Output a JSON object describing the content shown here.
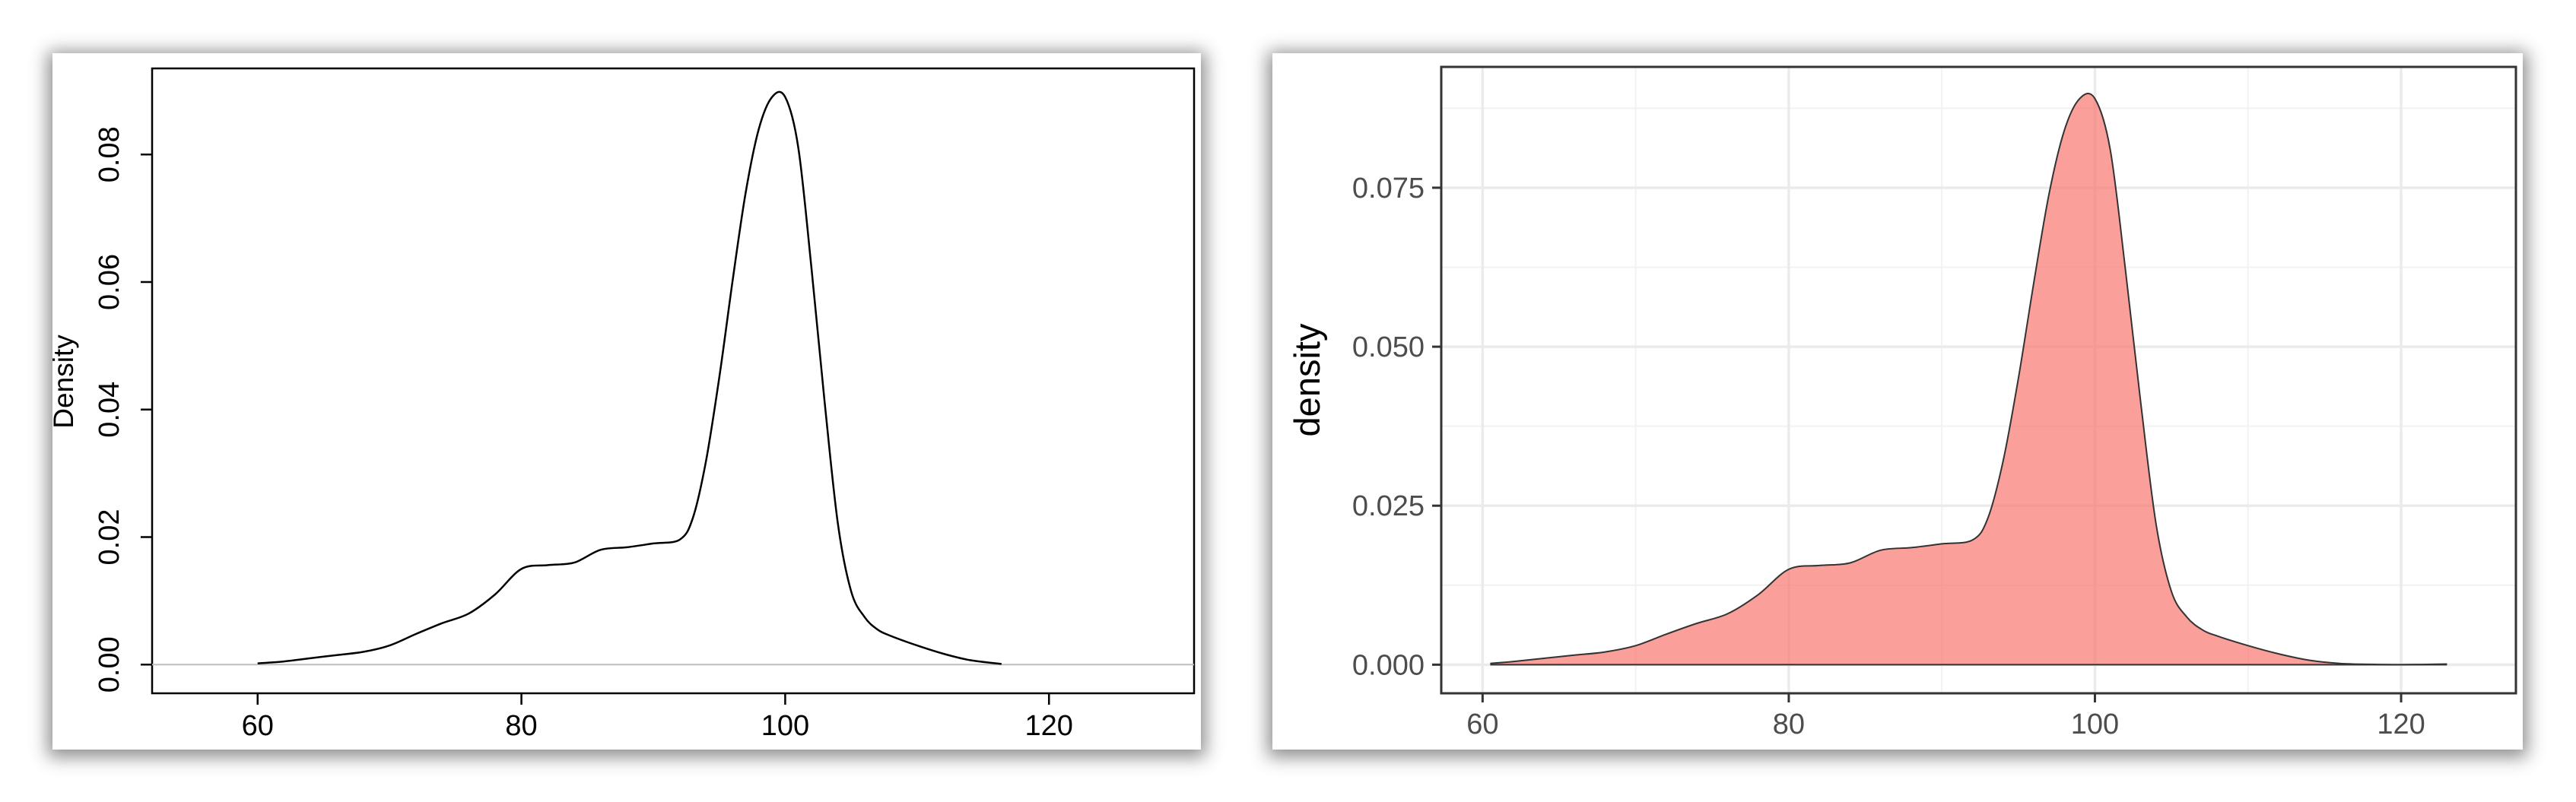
{
  "chart_data": [
    {
      "type": "line",
      "style": "base-r",
      "ylabel": "Density",
      "xlim": [
        52,
        131
      ],
      "ylim": [
        -0.0045,
        0.0935
      ],
      "x_ticks": [
        {
          "value": 60,
          "label": "60"
        },
        {
          "value": 80,
          "label": "80"
        },
        {
          "value": 100,
          "label": "100"
        },
        {
          "value": 120,
          "label": "120"
        }
      ],
      "y_ticks": [
        {
          "value": 0.0,
          "label": "0.00"
        },
        {
          "value": 0.02,
          "label": "0.02"
        },
        {
          "value": 0.04,
          "label": "0.04"
        },
        {
          "value": 0.06,
          "label": "0.06"
        },
        {
          "value": 0.08,
          "label": "0.08"
        }
      ],
      "zero_line": true,
      "grid": false,
      "line_color": "#000000",
      "x": [
        60,
        62,
        64,
        66,
        68,
        70,
        72,
        74,
        76,
        78,
        80,
        82,
        84,
        86,
        88,
        90,
        92,
        93,
        94,
        95,
        96,
        97,
        98,
        99,
        100,
        101,
        102,
        103,
        104,
        105,
        106,
        107,
        108,
        110,
        112,
        114,
        116.4
      ],
      "y": [
        0.0002,
        0.0005,
        0.001,
        0.0015,
        0.002,
        0.003,
        0.0048,
        0.0065,
        0.008,
        0.011,
        0.015,
        0.0156,
        0.016,
        0.018,
        0.0184,
        0.019,
        0.0196,
        0.023,
        0.032,
        0.045,
        0.06,
        0.074,
        0.084,
        0.089,
        0.089,
        0.081,
        0.062,
        0.041,
        0.022,
        0.0115,
        0.0075,
        0.0055,
        0.0045,
        0.003,
        0.0017,
        0.0007,
        0.0001
      ]
    },
    {
      "type": "area",
      "style": "ggplot-bw",
      "ylabel": "density",
      "xlim": [
        57.3,
        127.5
      ],
      "ylim": [
        -0.0045,
        0.094
      ],
      "x_ticks": [
        {
          "value": 60,
          "label": "60"
        },
        {
          "value": 80,
          "label": "80"
        },
        {
          "value": 100,
          "label": "100"
        },
        {
          "value": 120,
          "label": "120"
        }
      ],
      "y_ticks": [
        {
          "value": 0.0,
          "label": "0.000"
        },
        {
          "value": 0.025,
          "label": "0.025"
        },
        {
          "value": 0.05,
          "label": "0.050"
        },
        {
          "value": 0.075,
          "label": "0.075"
        }
      ],
      "grid": true,
      "fill_color": "#f8766d",
      "fill_opacity": 0.7,
      "line_color": "#333333",
      "x": [
        60.5,
        62,
        64,
        66,
        68,
        70,
        72,
        74,
        76,
        78,
        80,
        82,
        84,
        86,
        88,
        90,
        92,
        93,
        94,
        95,
        96,
        97,
        98,
        99,
        100,
        101,
        102,
        103,
        104,
        105,
        106,
        107,
        108,
        110,
        112,
        114,
        116,
        118,
        120,
        123
      ],
      "y": [
        0.0002,
        0.0005,
        0.001,
        0.0015,
        0.002,
        0.003,
        0.0048,
        0.0065,
        0.008,
        0.011,
        0.015,
        0.0156,
        0.016,
        0.018,
        0.0184,
        0.019,
        0.0196,
        0.023,
        0.032,
        0.045,
        0.06,
        0.074,
        0.084,
        0.089,
        0.089,
        0.081,
        0.062,
        0.041,
        0.022,
        0.0115,
        0.0075,
        0.0055,
        0.0045,
        0.003,
        0.0017,
        0.0007,
        0.0002,
        5e-05,
        0.0,
        0.0001
      ]
    }
  ]
}
